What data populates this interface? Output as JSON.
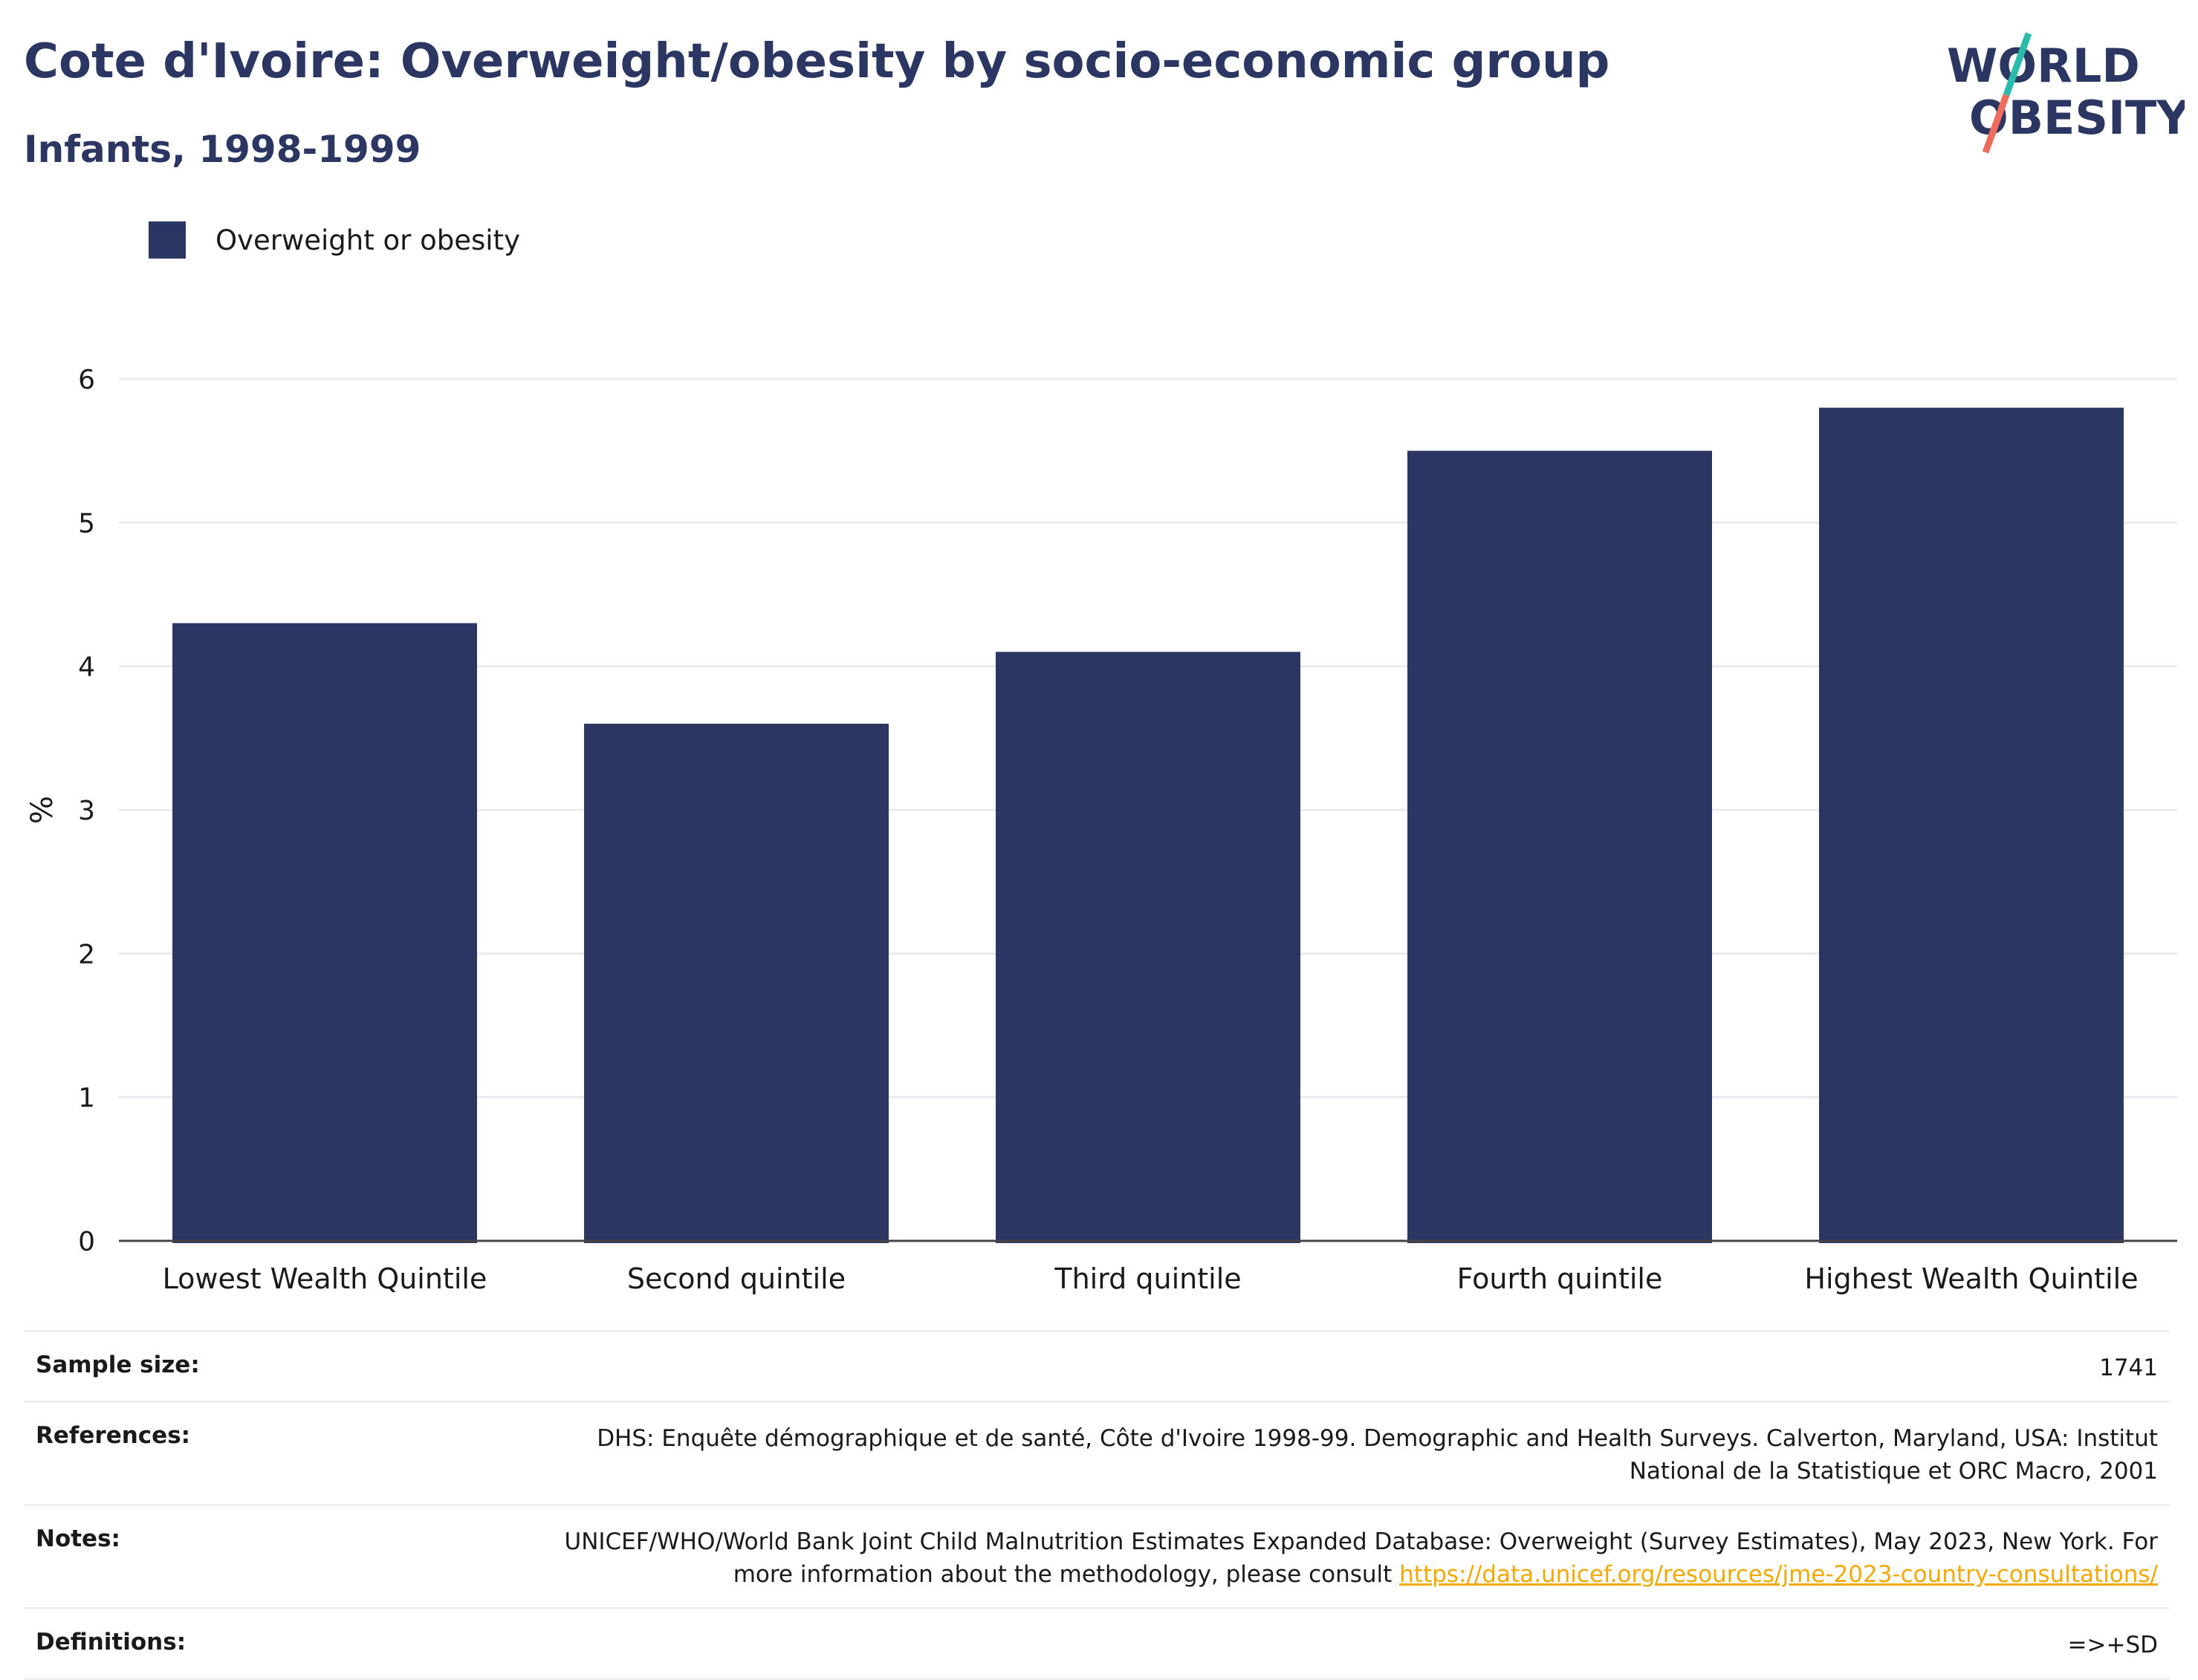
{
  "header": {
    "title": "Cote d'Ivoire: Overweight/obesity by socio-economic group",
    "subtitle": "Infants, 1998-1999"
  },
  "logo": {
    "line1": "WORLD",
    "line2": "OBESITY",
    "colors": {
      "text": "#2b3663",
      "slash_top": "#2bbbad",
      "slash_bottom": "#ef6b5b"
    }
  },
  "legend": {
    "items": [
      {
        "label": "Overweight or obesity",
        "color": "#2b3663"
      }
    ]
  },
  "chart_data": {
    "type": "bar",
    "categories": [
      "Lowest Wealth Quintile",
      "Second quintile",
      "Third quintile",
      "Fourth quintile",
      "Highest Wealth Quintile"
    ],
    "series": [
      {
        "name": "Overweight or obesity",
        "values": [
          4.3,
          3.6,
          4.1,
          5.5,
          5.8
        ],
        "color": "#2b3663"
      }
    ],
    "ylabel": "%",
    "xlabel": "",
    "ylim": [
      0,
      6
    ],
    "yticks": [
      "0",
      "1",
      "2",
      "3",
      "4",
      "5",
      "6"
    ],
    "grid": true,
    "legend_position": "top-left"
  },
  "meta": {
    "sample_size": {
      "label": "Sample size:",
      "value": "1741"
    },
    "references": {
      "label": "References:",
      "value": "DHS: Enquête démographique et de santé, Côte d'Ivoire 1998-99. Demographic and Health Surveys. Calverton, Maryland, USA: Institut National de la Statistique et ORC Macro, 2001"
    },
    "notes": {
      "label": "Notes:",
      "value": "UNICEF/WHO/World Bank Joint Child Malnutrition Estimates Expanded Database: Overweight (Survey Estimates), May 2023, New York. For more information about the methodology, please consult ",
      "link": "https://data.unicef.org/resources/jme-2023-country-consultations/"
    },
    "definitions": {
      "label": "Definitions:",
      "value": "=>+SD"
    }
  }
}
